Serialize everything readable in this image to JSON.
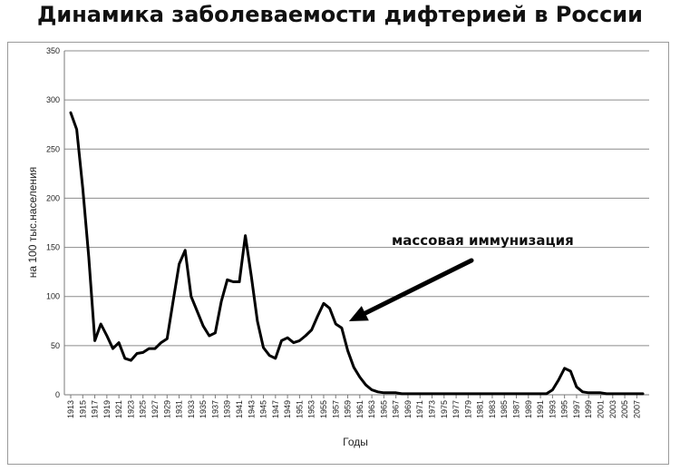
{
  "chart_data": {
    "type": "line",
    "title": "Динамика заболеваемости дифтерией в России",
    "xlabel": "Годы",
    "ylabel": "на 100 тыс.населения",
    "ylim": [
      0,
      350
    ],
    "yticks": [
      0,
      50,
      100,
      150,
      200,
      250,
      300,
      350
    ],
    "x": [
      1913,
      1914,
      1915,
      1916,
      1917,
      1918,
      1919,
      1920,
      1921,
      1922,
      1923,
      1924,
      1925,
      1926,
      1927,
      1928,
      1929,
      1930,
      1931,
      1932,
      1933,
      1934,
      1935,
      1936,
      1937,
      1938,
      1939,
      1940,
      1941,
      1942,
      1943,
      1944,
      1945,
      1946,
      1947,
      1948,
      1949,
      1950,
      1951,
      1952,
      1953,
      1954,
      1955,
      1956,
      1957,
      1958,
      1959,
      1960,
      1961,
      1962,
      1963,
      1964,
      1965,
      1966,
      1967,
      1968,
      1969,
      1970,
      1971,
      1972,
      1973,
      1974,
      1975,
      1976,
      1977,
      1978,
      1979,
      1980,
      1981,
      1982,
      1983,
      1984,
      1985,
      1986,
      1987,
      1988,
      1989,
      1990,
      1991,
      1992,
      1993,
      1994,
      1995,
      1996,
      1997,
      1998,
      1999,
      2000,
      2001,
      2002,
      2003,
      2004,
      2005,
      2006,
      2007,
      2008
    ],
    "xtick_labels": [
      "1913",
      "1915",
      "1917",
      "1919",
      "1921",
      "1923",
      "1925",
      "1927",
      "1929",
      "1931",
      "1933",
      "1935",
      "1937",
      "1939",
      "1941",
      "1943",
      "1945",
      "1947",
      "1949",
      "1951",
      "1953",
      "1955",
      "1957",
      "1959",
      "1961",
      "1963",
      "1965",
      "1967",
      "1969",
      "1971",
      "1973",
      "1975",
      "1977",
      "1979",
      "1981",
      "1983",
      "1985",
      "1987",
      "1989",
      "1991",
      "1993",
      "1995",
      "1997",
      "1999",
      "2001",
      "2003",
      "2005",
      "2007"
    ],
    "series": [
      {
        "name": "",
        "values": [
          287,
          270,
          210,
          140,
          55,
          72,
          60,
          47,
          53,
          37,
          35,
          42,
          43,
          47,
          47,
          53,
          57,
          95,
          133,
          147,
          100,
          85,
          70,
          60,
          63,
          95,
          117,
          115,
          115,
          162,
          120,
          75,
          48,
          40,
          37,
          55,
          58,
          53,
          55,
          60,
          66,
          80,
          93,
          88,
          72,
          68,
          45,
          28,
          18,
          10,
          5,
          3,
          2,
          2,
          2,
          1,
          1,
          1,
          1,
          1,
          1,
          1,
          1,
          1,
          1,
          1,
          1,
          1,
          1,
          1,
          1,
          1,
          1,
          1,
          1,
          1,
          1,
          1,
          1,
          1,
          5,
          15,
          27,
          24,
          8,
          3,
          2,
          2,
          2,
          1,
          1,
          1,
          1,
          1,
          1,
          1
        ]
      }
    ],
    "annotations": [
      {
        "text": "массовая иммунизация",
        "points_to_x": 1958,
        "points_to_y": 72
      }
    ],
    "grid": true,
    "legend": "none"
  }
}
